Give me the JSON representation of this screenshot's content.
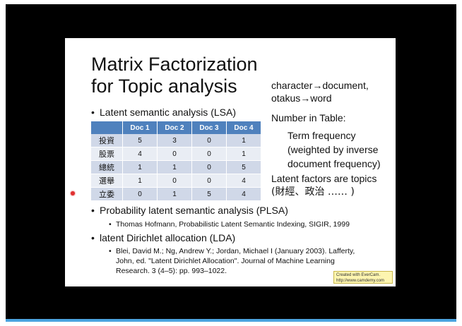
{
  "slide": {
    "title_line1": "Matrix Factorization",
    "title_line2": "for Topic analysis",
    "right": {
      "mapping_line1": "character→document,",
      "mapping_line2": "otakus→word",
      "number_label": "Number in Table:",
      "term_line1": "Term frequency",
      "term_line2": "(weighted by inverse",
      "term_line3": "document frequency)",
      "latent_line1": "Latent factors are topics",
      "latent_line2": "(財經、政治 …… )"
    },
    "bullets": {
      "lsa": "Latent semantic analysis (LSA)",
      "plsa": "Probability latent semantic analysis (PLSA)",
      "plsa_ref": "Thomas Hofmann, Probabilistic Latent Semantic Indexing, SIGIR, 1999",
      "lda": "latent Dirichlet allocation (LDA)",
      "lda_ref_line1": "Blei, David M.; Ng, Andrew Y.; Jordan, Michael I (January 2003). Lafferty,",
      "lda_ref_line2": "John, ed. \"Latent Dirichlet Allocation\". Journal of Machine Learning",
      "lda_ref_line3": "Research. 3 (4–5): pp. 993–1022.",
      "bullet_char": "•"
    },
    "table": {
      "headers": [
        "",
        "Doc 1",
        "Doc 2",
        "Doc 3",
        "Doc 4"
      ],
      "rows": [
        {
          "term": "投資",
          "values": [
            "5",
            "3",
            "0",
            "1"
          ]
        },
        {
          "term": "股票",
          "values": [
            "4",
            "0",
            "0",
            "1"
          ]
        },
        {
          "term": "總統",
          "values": [
            "1",
            "1",
            "0",
            "5"
          ]
        },
        {
          "term": "選舉",
          "values": [
            "1",
            "0",
            "0",
            "4"
          ]
        },
        {
          "term": "立委",
          "values": [
            "0",
            "1",
            "5",
            "4"
          ]
        }
      ]
    },
    "watermark": {
      "line1": "Created with EverCam.",
      "line2": "http://www.camdemy.com"
    }
  },
  "colors": {
    "frame": "#000000",
    "table_header": "#4f81bd",
    "table_row_odd": "#d0d8e8",
    "table_row_even": "#e9edf4",
    "progress_bar": "#4aa3df"
  }
}
